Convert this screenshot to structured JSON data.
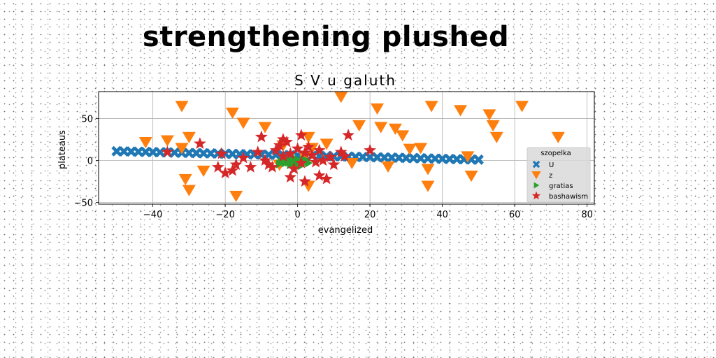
{
  "page_title": "strengthening plushed",
  "chart_data": {
    "type": "scatter",
    "title": "S V u galuth",
    "xlabel": "evangelized",
    "ylabel": "plateaus",
    "xlim": [
      -55,
      82
    ],
    "ylim": [
      -52,
      82
    ],
    "xticks": [
      -40,
      -20,
      0,
      20,
      40,
      60,
      80
    ],
    "yticks": [
      -50,
      0,
      50
    ],
    "grid": true,
    "legend": {
      "title": "szopelka",
      "placement": "lower-right"
    },
    "series": [
      {
        "name": "U",
        "marker": "X",
        "color": "#1f77b4",
        "x": [
          -50.0,
          -48.0,
          -46.0,
          -44.0,
          -42.0,
          -40.0,
          -38.0,
          -36.0,
          -34.0,
          -32.0,
          -30.0,
          -28.0,
          -26.0,
          -24.0,
          -22.0,
          -20.0,
          -18.0,
          -16.0,
          -14.0,
          -12.0,
          -10.0,
          -8.0,
          -6.0,
          -4.0,
          -2.0,
          0.0,
          2.0,
          4.0,
          6.0,
          8.0,
          10.0,
          12.0,
          14.0,
          16.0,
          18.0,
          20.0,
          22.0,
          24.0,
          26.0,
          28.0,
          30.0,
          32.0,
          34.0,
          36.0,
          38.0,
          40.0,
          42.0,
          44.0,
          46.0,
          48.0,
          50.0
        ],
        "y": [
          11.0,
          10.8,
          10.6,
          10.4,
          10.2,
          10.0,
          9.8,
          9.6,
          9.4,
          9.2,
          9.0,
          8.8,
          8.6,
          8.4,
          8.2,
          8.0,
          7.8,
          7.6,
          7.4,
          7.2,
          7.0,
          6.8,
          6.6,
          6.4,
          6.2,
          6.0,
          5.8,
          5.6,
          5.4,
          5.2,
          5.0,
          4.8,
          4.6,
          4.4,
          4.2,
          4.0,
          3.8,
          3.6,
          3.4,
          3.2,
          3.0,
          2.8,
          2.6,
          2.4,
          2.2,
          2.0,
          1.8,
          1.6,
          1.4,
          1.2,
          1.0
        ]
      },
      {
        "name": "z",
        "marker": "v",
        "color": "#ff7f0e",
        "x": [
          -32,
          -30,
          -26,
          -31,
          -30,
          -42,
          -36,
          -32,
          -18,
          -15,
          -17,
          -9,
          -4,
          3,
          4,
          -5,
          8,
          12,
          17,
          22,
          23,
          27,
          29,
          31,
          34,
          37,
          36,
          45,
          48,
          53,
          54,
          55,
          62,
          72,
          2,
          15,
          25,
          36,
          47,
          3
        ],
        "y": [
          65,
          28,
          -12,
          -22,
          -35,
          22,
          24,
          15,
          57,
          45,
          -42,
          40,
          18,
          28,
          15,
          -5,
          20,
          76,
          42,
          62,
          40,
          38,
          30,
          14,
          15,
          65,
          -10,
          60,
          -18,
          55,
          42,
          28,
          65,
          28,
          5,
          -3,
          -7,
          -30,
          5,
          -30
        ],
        "size": 16
      },
      {
        "name": "gratias",
        "marker": ">",
        "color": "#2ca02c",
        "x": [
          -5.0,
          -4.5,
          -4.0,
          -3.5,
          -3.0,
          -2.5,
          -2.0,
          -1.5,
          -1.0,
          -0.5,
          0.0,
          0.5,
          1.0,
          1.5,
          2.0,
          2.5,
          3.0
        ],
        "y": [
          -4,
          -2,
          0,
          -3,
          1,
          -2,
          -5,
          0,
          -3,
          2,
          -4,
          -1,
          -6,
          1,
          -2,
          0,
          -3
        ]
      },
      {
        "name": "bashawism",
        "marker": "*",
        "color": "#d62728",
        "x": [
          -36,
          -27,
          -21,
          -20,
          -17,
          -15,
          -13,
          -11,
          -9,
          -8,
          -6,
          -5,
          -4,
          -3,
          -2,
          -1,
          0,
          1,
          2,
          3,
          4,
          5,
          6,
          7,
          8,
          9,
          10,
          12,
          14,
          20,
          -22,
          -18,
          -4,
          2,
          6,
          -2,
          1,
          -7,
          13,
          -10
        ],
        "y": [
          10,
          20,
          8,
          -15,
          -5,
          3,
          -8,
          10,
          0,
          -5,
          12,
          18,
          5,
          22,
          8,
          -10,
          14,
          -3,
          9,
          16,
          6,
          -2,
          12,
          0,
          -22,
          4,
          -5,
          10,
          30,
          12,
          -8,
          -12,
          25,
          -25,
          -18,
          -20,
          30,
          -8,
          5,
          28
        ]
      }
    ]
  }
}
